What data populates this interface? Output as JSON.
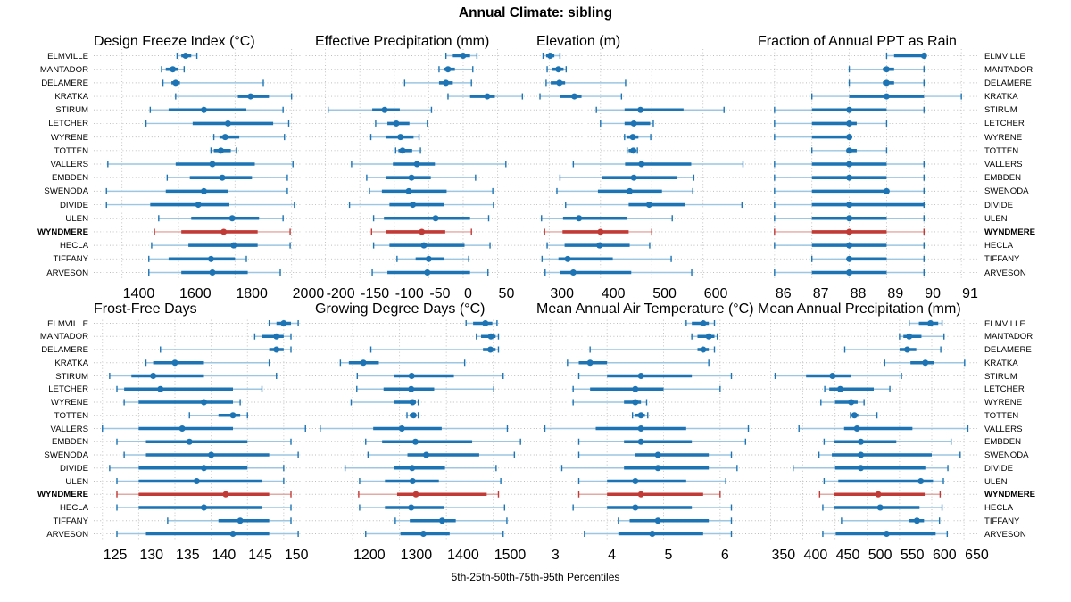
{
  "title": "Annual Climate: sibling",
  "caption": "5th-25th-50th-75th-95th Percentiles",
  "colors": {
    "series_main": "#1c74b4",
    "series_light": "#9cc6e2",
    "highlight_main": "#c23a36",
    "highlight_light": "#e5a9a4",
    "strip_bg": "#ececec",
    "grid": "#bdbdbd",
    "border": "#000000"
  },
  "chart_data": {
    "type": "dot-interval-trellis",
    "note": "horizontal 5th-25th-50th-75th-95th percentile intervals per station, 2x4 panel grid",
    "highlight_category": "WYNDMERE",
    "categories": [
      "ELMVILLE",
      "MANTADOR",
      "DELAMERE",
      "KRATKA",
      "STIRUM",
      "LETCHER",
      "WYRENE",
      "TOTTEN",
      "VALLERS",
      "EMBDEN",
      "SWENODA",
      "DIVIDE",
      "ULEN",
      "WYNDMERE",
      "HECLA",
      "TIFFANY",
      "ARVESON"
    ],
    "panels": [
      {
        "title": "Design Freeze Index (°C)",
        "xticks": [
          1400,
          1600,
          1800,
          2000
        ],
        "xrange": [
          1300,
          2080
        ],
        "values": [
          [
            1595,
            1610,
            1625,
            1645,
            1665
          ],
          [
            1540,
            1555,
            1580,
            1600,
            1620
          ],
          [
            1545,
            1575,
            1590,
            1605,
            1900
          ],
          [
            1590,
            1810,
            1855,
            1920,
            2000
          ],
          [
            1500,
            1565,
            1690,
            1840,
            1970
          ],
          [
            1485,
            1650,
            1775,
            1935,
            1990
          ],
          [
            1725,
            1745,
            1765,
            1815,
            1975
          ],
          [
            1715,
            1725,
            1750,
            1785,
            1805
          ],
          [
            1350,
            1590,
            1720,
            1870,
            2005
          ],
          [
            1560,
            1640,
            1755,
            1860,
            1985
          ],
          [
            1345,
            1555,
            1690,
            1775,
            1985
          ],
          [
            1345,
            1500,
            1670,
            1780,
            2010
          ],
          [
            1530,
            1645,
            1790,
            1885,
            1970
          ],
          [
            1515,
            1610,
            1760,
            1880,
            1995
          ],
          [
            1505,
            1635,
            1795,
            1880,
            1995
          ],
          [
            1495,
            1565,
            1715,
            1800,
            1840
          ],
          [
            1495,
            1610,
            1720,
            1845,
            1960
          ]
        ]
      },
      {
        "title": "Effective Precipitation (mm)",
        "xticks": [
          -200,
          -150,
          -100,
          -50,
          0,
          50
        ],
        "xrange": [
          -215,
          105
        ],
        "values": [
          [
            -25,
            -15,
            0,
            10,
            20
          ],
          [
            -35,
            -28,
            -22,
            -12,
            14
          ],
          [
            -85,
            -35,
            -25,
            -15,
            12
          ],
          [
            -22,
            10,
            35,
            46,
            86
          ],
          [
            -196,
            -132,
            -114,
            -92,
            -46
          ],
          [
            -127,
            -110,
            -97,
            -78,
            -52
          ],
          [
            -134,
            -112,
            -91,
            -72,
            -64
          ],
          [
            -98,
            -94,
            -88,
            -74,
            -62
          ],
          [
            -162,
            -102,
            -67,
            -41,
            62
          ],
          [
            -140,
            -112,
            -75,
            -47,
            18
          ],
          [
            -136,
            -118,
            -79,
            -24,
            43
          ],
          [
            -165,
            -107,
            -73,
            -28,
            44
          ],
          [
            -130,
            -115,
            -40,
            10,
            37
          ],
          [
            -133,
            -112,
            -60,
            -26,
            12
          ],
          [
            -130,
            -107,
            -57,
            2,
            39
          ],
          [
            -96,
            -69,
            -50,
            -28,
            8
          ],
          [
            -132,
            -110,
            -52,
            10,
            36
          ]
        ]
      },
      {
        "title": "Elevation (m)",
        "xticks": [
          300,
          400,
          500,
          600
        ],
        "xrange": [
          275,
          705
        ],
        "values": [
          [
            288,
            294,
            302,
            310,
            321
          ],
          [
            296,
            306,
            318,
            328,
            333
          ],
          [
            294,
            303,
            320,
            331,
            449
          ],
          [
            282,
            322,
            349,
            363,
            441
          ],
          [
            392,
            447,
            478,
            562,
            641
          ],
          [
            400,
            447,
            465,
            497,
            503
          ],
          [
            447,
            452,
            463,
            474,
            498
          ],
          [
            452,
            455,
            464,
            469,
            472
          ],
          [
            347,
            448,
            480,
            577,
            678
          ],
          [
            321,
            403,
            465,
            550,
            582
          ],
          [
            315,
            395,
            457,
            520,
            580
          ],
          [
            332,
            455,
            495,
            565,
            676
          ],
          [
            285,
            327,
            358,
            452,
            540
          ],
          [
            291,
            326,
            400,
            455,
            500
          ],
          [
            296,
            330,
            398,
            457,
            496
          ],
          [
            286,
            318,
            336,
            424,
            538
          ],
          [
            292,
            321,
            347,
            460,
            578
          ]
        ]
      },
      {
        "title": "Fraction of Annual PPT as Rain",
        "xticks": [
          86,
          87,
          88,
          89,
          90,
          91
        ],
        "xrange": [
          85.55,
          91.45
        ],
        "values": [
          [
            89,
            89.2,
            90,
            90,
            90
          ],
          [
            88,
            88.9,
            89,
            89.2,
            90
          ],
          [
            88,
            88.9,
            89,
            89.2,
            90
          ],
          [
            87,
            88,
            89,
            90,
            91
          ],
          [
            86,
            87,
            88,
            89,
            90
          ],
          [
            86,
            87,
            88,
            88.2,
            89
          ],
          [
            86,
            87,
            88,
            88,
            88
          ],
          [
            87,
            88,
            88,
            88.2,
            89
          ],
          [
            86,
            87,
            88,
            89,
            90
          ],
          [
            86,
            87,
            88,
            89,
            90
          ],
          [
            86,
            87,
            89,
            89,
            90
          ],
          [
            86,
            87,
            88,
            90,
            90
          ],
          [
            86,
            87,
            88,
            89,
            90
          ],
          [
            86,
            87,
            88,
            89,
            90
          ],
          [
            86,
            87,
            88,
            89,
            90
          ],
          [
            87,
            88,
            88,
            89,
            90
          ],
          [
            86,
            87,
            88,
            89,
            90
          ]
        ]
      },
      {
        "title": "Frost-Free Days",
        "xticks": [
          125,
          130,
          135,
          140,
          145,
          150
        ],
        "xrange": [
          123.8,
          154.2
        ],
        "values": [
          [
            148,
            149,
            150,
            151,
            152
          ],
          [
            146,
            147,
            149,
            150,
            151
          ],
          [
            133,
            148,
            149,
            150,
            151
          ],
          [
            131,
            132,
            135,
            139,
            148
          ],
          [
            126,
            129,
            132,
            139,
            149
          ],
          [
            127,
            128,
            133,
            143,
            147
          ],
          [
            128,
            130,
            139,
            143,
            144
          ],
          [
            137,
            141,
            143,
            144,
            145
          ],
          [
            125,
            130,
            136,
            143,
            153
          ],
          [
            127,
            131,
            137,
            145,
            151
          ],
          [
            128,
            131,
            140,
            148,
            152
          ],
          [
            126,
            130,
            139,
            145,
            150
          ],
          [
            127,
            130,
            138,
            147,
            150
          ],
          [
            127,
            130,
            142,
            148,
            151
          ],
          [
            127,
            130,
            139,
            147,
            151
          ],
          [
            134,
            141,
            144,
            148,
            151
          ],
          [
            127,
            131,
            143,
            148,
            152
          ]
        ]
      },
      {
        "title": "Growing Degree Days (°C)",
        "xticks": [
          1200,
          1300,
          1400,
          1500
        ],
        "xrange": [
          1120,
          1590
        ],
        "values": [
          [
            1442,
            1457,
            1483,
            1498,
            1508
          ],
          [
            1464,
            1474,
            1495,
            1505,
            1511
          ],
          [
            1239,
            1478,
            1494,
            1505,
            1511
          ],
          [
            1174,
            1192,
            1223,
            1256,
            1439
          ],
          [
            1210,
            1289,
            1326,
            1416,
            1521
          ],
          [
            1209,
            1266,
            1325,
            1374,
            1501
          ],
          [
            1197,
            1289,
            1328,
            1335,
            1340
          ],
          [
            1316,
            1322,
            1330,
            1336,
            1340
          ],
          [
            1131,
            1244,
            1305,
            1390,
            1530
          ],
          [
            1228,
            1263,
            1334,
            1455,
            1558
          ],
          [
            1233,
            1317,
            1357,
            1470,
            1545
          ],
          [
            1184,
            1289,
            1327,
            1397,
            1506
          ],
          [
            1215,
            1269,
            1328,
            1384,
            1516
          ],
          [
            1213,
            1295,
            1335,
            1486,
            1511
          ],
          [
            1215,
            1269,
            1325,
            1394,
            1524
          ],
          [
            1291,
            1322,
            1391,
            1420,
            1529
          ],
          [
            1228,
            1302,
            1351,
            1407,
            1521
          ]
        ]
      },
      {
        "title": "Mean Annual Air Temperature (°C)",
        "xticks": [
          3,
          4,
          5,
          6
        ],
        "xrange": [
          2.75,
          6.65
        ],
        "values": [
          [
            5.4,
            5.5,
            5.7,
            5.8,
            5.9
          ],
          [
            5.5,
            5.6,
            5.8,
            5.9,
            5.95
          ],
          [
            3.7,
            5.6,
            5.7,
            5.8,
            5.9
          ],
          [
            3.3,
            3.5,
            3.7,
            4.0,
            5.8
          ],
          [
            3.5,
            4.0,
            4.6,
            5.5,
            6.2
          ],
          [
            3.4,
            3.7,
            4.5,
            5.0,
            6.0
          ],
          [
            3.4,
            4.3,
            4.5,
            4.6,
            4.7
          ],
          [
            4.45,
            4.5,
            4.6,
            4.67,
            4.72
          ],
          [
            2.9,
            3.8,
            4.6,
            5.4,
            6.5
          ],
          [
            3.5,
            4.3,
            4.6,
            5.5,
            6.45
          ],
          [
            3.5,
            4.5,
            4.9,
            5.8,
            6.2
          ],
          [
            3.2,
            4.3,
            4.9,
            5.8,
            6.3
          ],
          [
            3.5,
            4.0,
            4.5,
            5.4,
            6.1
          ],
          [
            3.5,
            4.0,
            4.6,
            5.7,
            6.0
          ],
          [
            3.4,
            4.0,
            4.5,
            5.5,
            6.2
          ],
          [
            4.2,
            4.4,
            4.9,
            5.8,
            6.2
          ],
          [
            3.6,
            4.2,
            4.8,
            5.7,
            6.2
          ]
        ]
      },
      {
        "title": "Mean Annual Precipitation (mm)",
        "xticks": [
          350,
          400,
          450,
          500,
          550,
          600,
          650
        ],
        "xrange": [
          330,
          672
        ],
        "values": [
          [
            565,
            580,
            598,
            610,
            616
          ],
          [
            550,
            556,
            565,
            584,
            619
          ],
          [
            465,
            550,
            562,
            576,
            614
          ],
          [
            527,
            567,
            590,
            604,
            651
          ],
          [
            357,
            405,
            446,
            475,
            553
          ],
          [
            434,
            441,
            458,
            510,
            535
          ],
          [
            428,
            450,
            475,
            485,
            495
          ],
          [
            474,
            477,
            480,
            486,
            515
          ],
          [
            394,
            464,
            484,
            570,
            656
          ],
          [
            433,
            448,
            490,
            545,
            630
          ],
          [
            425,
            445,
            490,
            600,
            644
          ],
          [
            385,
            450,
            490,
            590,
            625
          ],
          [
            433,
            455,
            583,
            602,
            618
          ],
          [
            426,
            448,
            517,
            589,
            613
          ],
          [
            431,
            449,
            520,
            581,
            616
          ],
          [
            460,
            565,
            577,
            588,
            612
          ],
          [
            431,
            451,
            530,
            606,
            624
          ]
        ]
      }
    ]
  }
}
